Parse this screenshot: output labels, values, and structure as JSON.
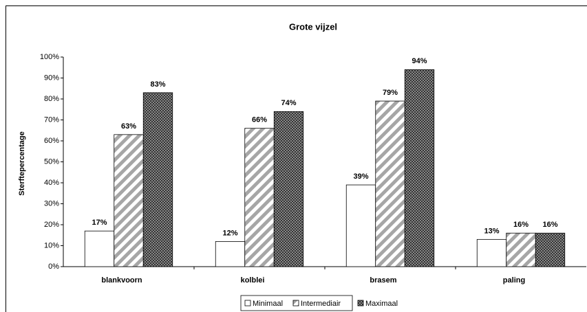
{
  "chart_data": {
    "type": "bar",
    "title": "Grote vijzel",
    "y_label": "Sterftepercentage",
    "categories": [
      "blankvoorn",
      "kolblei",
      "brasem",
      "paling"
    ],
    "series": [
      {
        "name": "Minimaal",
        "color": "#ffffff",
        "pattern": "none",
        "values": [
          17,
          12,
          39,
          13
        ],
        "value_labels": [
          "17%",
          "12%",
          "39%",
          "13%"
        ]
      },
      {
        "name": "Intermediair",
        "color": "#a6a6a6",
        "pattern": "diagonal",
        "values": [
          63,
          66,
          79,
          16
        ],
        "value_labels": [
          "63%",
          "66%",
          "79%",
          "16%"
        ]
      },
      {
        "name": "Maximaal",
        "color": "#555555",
        "pattern": "dots",
        "values": [
          83,
          74,
          94,
          16
        ],
        "value_labels": [
          "83%",
          "74%",
          "94%",
          "16%"
        ]
      }
    ],
    "ylim": [
      0,
      100
    ],
    "yticks": [
      {
        "value": 0,
        "label": "0%"
      },
      {
        "value": 10,
        "label": "10%"
      },
      {
        "value": 20,
        "label": "20%"
      },
      {
        "value": 30,
        "label": "30%"
      },
      {
        "value": 40,
        "label": "40%"
      },
      {
        "value": 50,
        "label": "50%"
      },
      {
        "value": 60,
        "label": "60%"
      },
      {
        "value": 70,
        "label": "70%"
      },
      {
        "value": 80,
        "label": "80%"
      },
      {
        "value": 90,
        "label": "90%"
      },
      {
        "value": 100,
        "label": "100%"
      }
    ],
    "grid": false,
    "legend": "bottom"
  }
}
